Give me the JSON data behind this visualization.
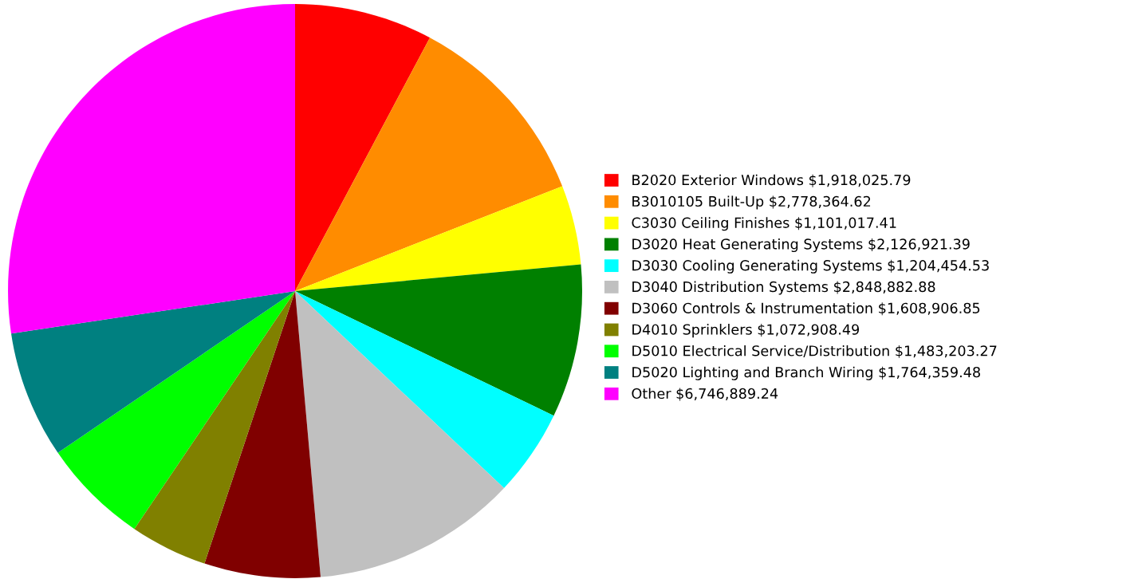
{
  "chart_data": {
    "type": "pie",
    "categories": [
      "B2020 Exterior Windows",
      "B3010105 Built-Up",
      "C3030 Ceiling Finishes",
      "D3020 Heat Generating Systems",
      "D3030 Cooling Generating Systems",
      "D3040 Distribution Systems",
      "D3060 Controls & Instrumentation",
      "D4010 Sprinklers",
      "D5010 Electrical Service/Distribution",
      "D5020 Lighting and Branch Wiring",
      "Other"
    ],
    "values": [
      1918025.79,
      2778364.62,
      1101017.41,
      2126921.39,
      1204454.53,
      2848882.88,
      1608906.85,
      1072908.49,
      1483203.27,
      1764359.48,
      6746889.24
    ],
    "value_labels": [
      "$1,918,025.79",
      "$2,778,364.62",
      "$1,101,017.41",
      "$2,126,921.39",
      "$1,204,454.53",
      "$2,848,882.88",
      "$1,608,906.85",
      "$1,072,908.49",
      "$1,483,203.27",
      "$1,764,359.48",
      "$6,746,889.24"
    ],
    "colors": [
      "#ff0000",
      "#ff8c00",
      "#ffff00",
      "#008000",
      "#00ffff",
      "#c0c0c0",
      "#800000",
      "#808000",
      "#00ff00",
      "#008080",
      "#ff00ff"
    ],
    "legend": "right"
  }
}
